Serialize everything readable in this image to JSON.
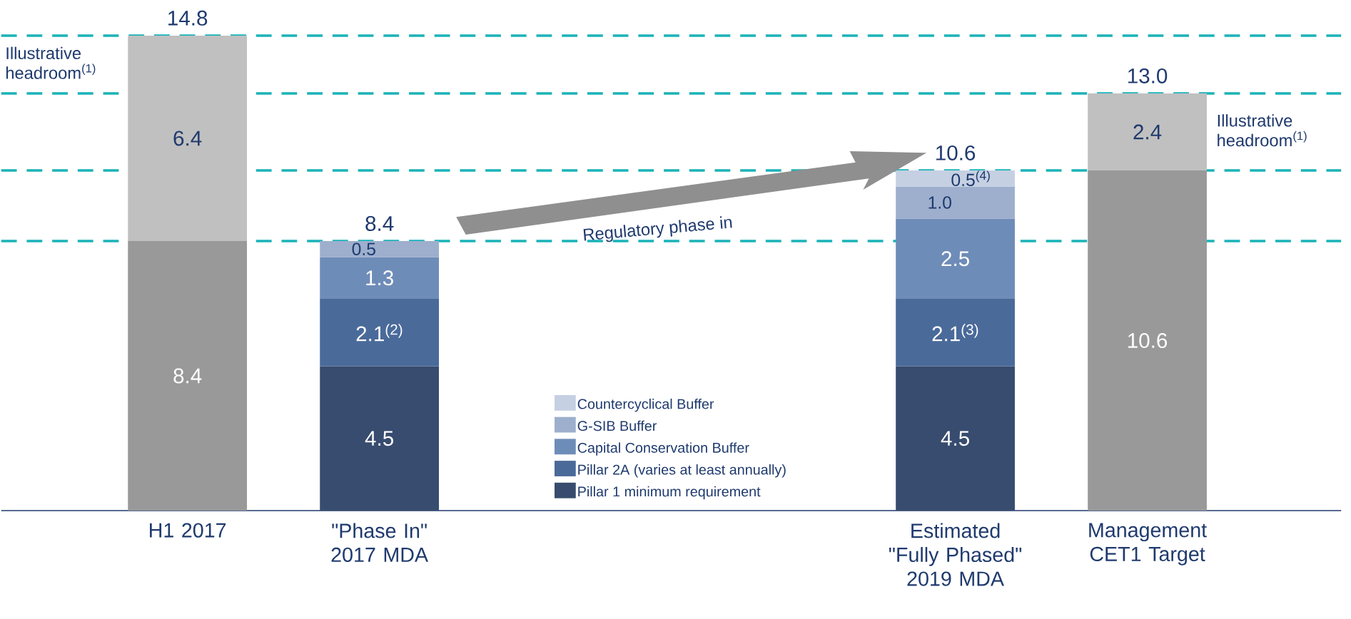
{
  "chart_data": {
    "type": "bar",
    "stacked": true,
    "categories": [
      "H1 2017",
      "\"Phase In\" 2017 MDA",
      null,
      null,
      "Estimated \"Fully Phased\" 2019 MDA",
      "Management CET1 Target"
    ],
    "series": [
      {
        "name": "Pillar 1 minimum requirement",
        "color": "#374c6e",
        "values": [
          null,
          4.5,
          null,
          null,
          4.5,
          null
        ],
        "value_labels": [
          null,
          "4.5",
          null,
          null,
          "4.5",
          null
        ]
      },
      {
        "name": "Pillar 2A (varies at least annually)",
        "color": "#4a6a9a",
        "values": [
          null,
          2.1,
          null,
          null,
          2.1,
          null
        ],
        "value_labels": [
          null,
          "2.1$^{(2)}$",
          null,
          null,
          "2.1$^{(3)}$",
          null
        ]
      },
      {
        "name": "Capital Conservation Buffer",
        "color": "#6e8cb8",
        "values": [
          null,
          1.3,
          null,
          null,
          2.5,
          null
        ],
        "value_labels": [
          null,
          "1.3",
          null,
          null,
          "2.5",
          null
        ]
      },
      {
        "name": "G-SIB Buffer",
        "color": "#9dafcd",
        "values": [
          null,
          0.5,
          null,
          null,
          1.0,
          null
        ],
        "value_labels": [
          null,
          "0.5",
          null,
          null,
          "1.0",
          null
        ]
      },
      {
        "name": "Countercyclical Buffer",
        "color": "#c5d0e2",
        "values": [
          null,
          null,
          null,
          null,
          0.5,
          null
        ],
        "value_labels": [
          null,
          null,
          null,
          null,
          "0.5$^{(4)}$",
          null
        ]
      },
      {
        "color": "#999999",
        "values": [
          8.4,
          null,
          null,
          null,
          null,
          10.6
        ],
        "value_labels": [
          "8.4",
          null,
          null,
          null,
          null,
          "10.6"
        ]
      },
      {
        "color": "#c0c0c0",
        "values": [
          6.4,
          null,
          null,
          null,
          null,
          2.4
        ],
        "value_labels": [
          "6.4",
          null,
          null,
          null,
          null,
          "2.4"
        ]
      }
    ],
    "totals": [
      "14.8",
      "8.4",
      null,
      null,
      "10.6",
      "13.0"
    ],
    "ref_lines": [
      {
        "axis": "y",
        "value": 14.8,
        "color": "#1ab3b8",
        "line_style": "dashed"
      },
      {
        "axis": "y",
        "value": 8.4,
        "color": "#1ab3b8",
        "line_style": "dashed"
      },
      {
        "axis": "y",
        "value": 13.0,
        "color": "#1ab3b8",
        "line_style": "dashed"
      },
      {
        "axis": "y",
        "value": 10.6,
        "color": "#1ab3b8",
        "line_style": "dashed"
      }
    ],
    "annotations": [
      "Illustrative headroom$^{(1)}$",
      "Illustrative headroom$^{(1)}$",
      "Regulatory phase in"
    ],
    "legend": "bottom"
  }
}
